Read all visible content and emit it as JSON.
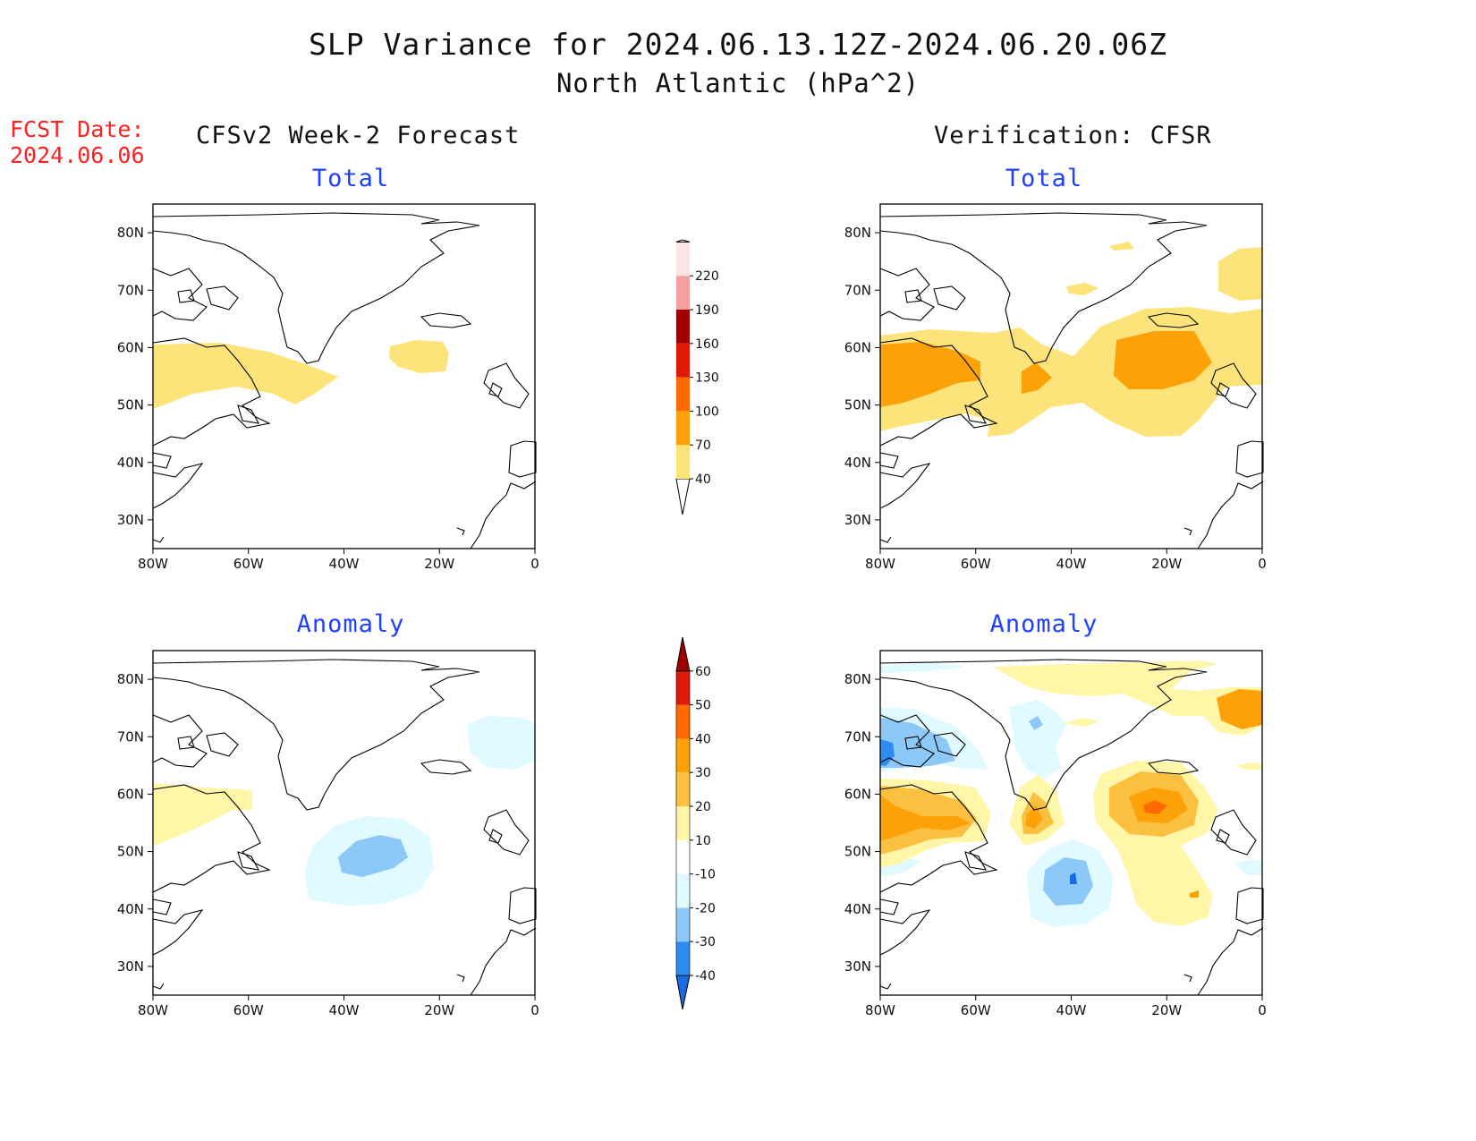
{
  "title": {
    "line1": "SLP Variance for 2024.06.13.12Z-2024.06.20.06Z",
    "line2": "North Atlantic (hPa^2)"
  },
  "fcst_date": {
    "label": "FCST Date:",
    "value": "2024.06.06"
  },
  "columns": {
    "left": "CFSv2 Week-2 Forecast",
    "right": "Verification: CFSR"
  },
  "panels": {
    "forecast_total": {
      "subtitle": "Total"
    },
    "verification_total": {
      "subtitle": "Total"
    },
    "forecast_anomaly": {
      "subtitle": "Anomaly"
    },
    "verification_anomaly": {
      "subtitle": "Anomaly"
    }
  },
  "axes": {
    "lon_ticks": [
      "80W",
      "60W",
      "40W",
      "20W",
      "0"
    ],
    "lat_ticks": [
      "80N",
      "70N",
      "60N",
      "50N",
      "40N",
      "30N"
    ],
    "lon_range": [
      -80,
      0
    ],
    "lat_range": [
      25,
      85
    ]
  },
  "colorbars": {
    "total": {
      "labels": [
        "40",
        "70",
        "100",
        "130",
        "160",
        "190",
        "220"
      ],
      "colors": [
        "#fde47a",
        "#fca208",
        "#ff6a00",
        "#e01a08",
        "#a00000",
        "#f4a0a0",
        "#fce4e4"
      ]
    },
    "anomaly": {
      "labels": [
        "-40",
        "-30",
        "-20",
        "-10",
        "10",
        "20",
        "30",
        "40",
        "50",
        "60"
      ],
      "colors": [
        "#1a6ae0",
        "#2c8cf0",
        "#8cc8f8",
        "#e0faff",
        "#ffffff",
        "#fff6a8",
        "#fcc040",
        "#fca208",
        "#ff6a00",
        "#e01a08",
        "#a00000"
      ]
    }
  }
}
